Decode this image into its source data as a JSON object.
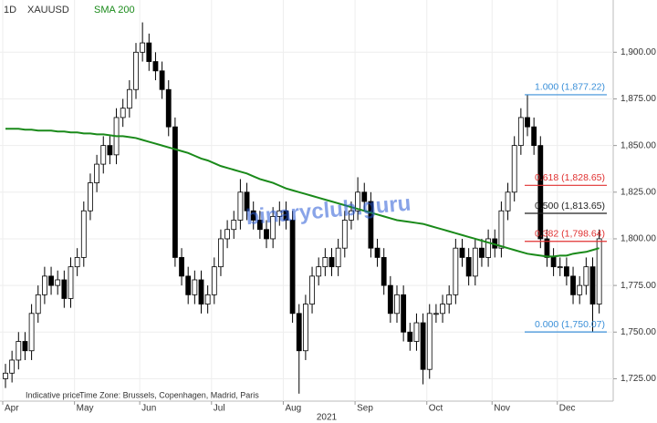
{
  "chart_data": {
    "type": "candlestick",
    "interval": "1D",
    "year_label": "2021",
    "footnote": "Indicative price",
    "timezone": "Time Zone: Brussels, Copenhagen, Madrid, Paris",
    "watermark": "binaryclub.guru",
    "categories": [
      null,
      null,
      null,
      null,
      null,
      null,
      null,
      null,
      null,
      null,
      null,
      null,
      null,
      null,
      null,
      null,
      null,
      null,
      null,
      null,
      null,
      null,
      null,
      null,
      null,
      null,
      null,
      null,
      null,
      null,
      null,
      null,
      null,
      null,
      null,
      null,
      null,
      null,
      null,
      null,
      null,
      null,
      null,
      null,
      null,
      null,
      null,
      null,
      null,
      null,
      null,
      null,
      null,
      null,
      null,
      null,
      null,
      null,
      null,
      null,
      null,
      null,
      null,
      null,
      null,
      null,
      null,
      null,
      null,
      null,
      null,
      null,
      null,
      null,
      null,
      null,
      null,
      null,
      null,
      null,
      null,
      null,
      null,
      null,
      null,
      null,
      null,
      null,
      null,
      null,
      null,
      null
    ],
    "xticks": [
      {
        "value": 0,
        "label": "Apr"
      },
      {
        "value": 11,
        "label": "May"
      },
      {
        "value": 21,
        "label": "Jun"
      },
      {
        "value": 32,
        "label": "Jul"
      },
      {
        "value": 43,
        "label": "Aug"
      },
      {
        "value": 54,
        "label": "Sep"
      },
      {
        "value": 65,
        "label": "Oct"
      },
      {
        "value": 75,
        "label": "Nov"
      },
      {
        "value": 85,
        "label": "Dec"
      }
    ],
    "ylim": [
      1713,
      1928
    ],
    "yticks": [
      {
        "value": 1725,
        "label": "1,725.00"
      },
      {
        "value": 1750,
        "label": "1,750.00"
      },
      {
        "value": 1775,
        "label": "1,775.00"
      },
      {
        "value": 1800,
        "label": "1,800.00"
      },
      {
        "value": 1825,
        "label": "1,825.00"
      },
      {
        "value": 1850,
        "label": "1,850.00"
      },
      {
        "value": 1875,
        "label": "1,875.00"
      },
      {
        "value": 1900,
        "label": "1,900.00"
      }
    ],
    "grid": true,
    "series": [
      {
        "name": "XAUUSD",
        "color": "#000000",
        "up_color": "#ffffff",
        "down_color": "#000000",
        "open": [
          1725,
          1728,
          1735,
          1745,
          1740,
          1760,
          1770,
          1780,
          1775,
          1778,
          1768,
          1785,
          1790,
          1815,
          1830,
          1840,
          1850,
          1845,
          1865,
          1870,
          1880,
          1900,
          1905,
          1895,
          1890,
          1880,
          1860,
          1790,
          1780,
          1770,
          1778,
          1765,
          1770,
          1785,
          1800,
          1805,
          1810,
          1825,
          1815,
          1810,
          1805,
          1800,
          1812,
          1815,
          1810,
          1760,
          1740,
          1765,
          1780,
          1785,
          1790,
          1785,
          1795,
          1810,
          1815,
          1825,
          1820,
          1795,
          1790,
          1775,
          1760,
          1770,
          1750,
          1745,
          1755,
          1730,
          1760,
          1760,
          1765,
          1770,
          1795,
          1790,
          1780,
          1795,
          1790,
          1800,
          1795,
          1815,
          1825,
          1850,
          1865,
          1860,
          1850,
          1800,
          1790,
          1785,
          1785,
          1780,
          1770,
          1775,
          1785,
          1765
        ],
        "high": [
          1733,
          1740,
          1750,
          1750,
          1765,
          1775,
          1785,
          1785,
          1783,
          1783,
          1790,
          1795,
          1820,
          1835,
          1845,
          1855,
          1855,
          1870,
          1875,
          1885,
          1905,
          1916,
          1910,
          1900,
          1895,
          1885,
          1865,
          1795,
          1785,
          1783,
          1783,
          1775,
          1790,
          1805,
          1810,
          1815,
          1832,
          1830,
          1820,
          1815,
          1810,
          1817,
          1820,
          1820,
          1815,
          1765,
          1770,
          1785,
          1790,
          1795,
          1795,
          1800,
          1815,
          1820,
          1833,
          1830,
          1825,
          1800,
          1795,
          1780,
          1775,
          1775,
          1755,
          1760,
          1760,
          1765,
          1765,
          1770,
          1775,
          1800,
          1800,
          1795,
          1800,
          1800,
          1805,
          1805,
          1820,
          1830,
          1855,
          1870,
          1877,
          1865,
          1855,
          1805,
          1795,
          1790,
          1790,
          1785,
          1780,
          1790,
          1790,
          1805
        ],
        "low": [
          1720,
          1723,
          1730,
          1735,
          1735,
          1755,
          1765,
          1770,
          1770,
          1763,
          1763,
          1780,
          1785,
          1810,
          1825,
          1835,
          1840,
          1840,
          1860,
          1865,
          1875,
          1895,
          1890,
          1885,
          1875,
          1855,
          1785,
          1775,
          1765,
          1765,
          1760,
          1760,
          1765,
          1780,
          1795,
          1800,
          1805,
          1810,
          1805,
          1800,
          1795,
          1795,
          1807,
          1805,
          1755,
          1717,
          1735,
          1760,
          1775,
          1780,
          1780,
          1780,
          1790,
          1805,
          1810,
          1815,
          1790,
          1785,
          1770,
          1755,
          1755,
          1745,
          1740,
          1740,
          1722,
          1725,
          1755,
          1755,
          1760,
          1765,
          1785,
          1775,
          1775,
          1785,
          1785,
          1790,
          1790,
          1810,
          1820,
          1845,
          1855,
          1845,
          1795,
          1785,
          1780,
          1780,
          1775,
          1765,
          1765,
          1770,
          1750,
          1760
        ],
        "close": [
          1728,
          1735,
          1745,
          1740,
          1760,
          1770,
          1780,
          1775,
          1778,
          1768,
          1785,
          1790,
          1815,
          1830,
          1840,
          1850,
          1845,
          1865,
          1870,
          1880,
          1900,
          1905,
          1895,
          1890,
          1880,
          1860,
          1790,
          1780,
          1770,
          1778,
          1765,
          1770,
          1785,
          1800,
          1805,
          1810,
          1825,
          1815,
          1810,
          1805,
          1800,
          1812,
          1815,
          1810,
          1760,
          1740,
          1765,
          1780,
          1785,
          1790,
          1785,
          1795,
          1810,
          1815,
          1825,
          1820,
          1795,
          1790,
          1775,
          1760,
          1770,
          1750,
          1745,
          1755,
          1730,
          1760,
          1760,
          1765,
          1770,
          1795,
          1790,
          1780,
          1795,
          1790,
          1800,
          1795,
          1815,
          1825,
          1850,
          1865,
          1860,
          1850,
          1800,
          1790,
          1785,
          1785,
          1780,
          1770,
          1775,
          1785,
          1765,
          1800
        ]
      },
      {
        "name": "SMA 200",
        "color": "#1a8a1a",
        "values": [
          1859,
          1859,
          1859,
          1858.5,
          1858.5,
          1858,
          1858,
          1858,
          1857.5,
          1857.5,
          1857,
          1857,
          1856.5,
          1856.5,
          1856,
          1856,
          1855.5,
          1855,
          1855,
          1854.5,
          1854,
          1853,
          1852,
          1851,
          1850,
          1849,
          1848,
          1847,
          1846,
          1844.5,
          1843,
          1842,
          1840.5,
          1839,
          1838,
          1837,
          1836,
          1835,
          1833.5,
          1832,
          1831,
          1830,
          1828.5,
          1827,
          1826,
          1825,
          1824,
          1823,
          1822,
          1821,
          1820,
          1819,
          1818,
          1817,
          1816,
          1815,
          1814,
          1813,
          1812,
          1811,
          1810,
          1809.5,
          1809,
          1808.5,
          1808,
          1807,
          1806,
          1805,
          1804,
          1803,
          1802,
          1801,
          1800,
          1799,
          1798,
          1797,
          1796,
          1795,
          1794,
          1793,
          1792,
          1791.5,
          1791,
          1790.5,
          1790.5,
          1791,
          1791,
          1792,
          1792.5,
          1793,
          1794,
          1795
        ]
      }
    ],
    "fib_levels": [
      {
        "value": 1877.22,
        "label": "1.000 (1,877.22)",
        "color": "#3a8fd8"
      },
      {
        "value": 1828.65,
        "label": "0.618 (1,828.65)",
        "color": "#e03030"
      },
      {
        "value": 1813.65,
        "label": "0.500 (1,813.65)",
        "color": "#222222"
      },
      {
        "value": 1798.64,
        "label": "0.382 (1,798.64)",
        "color": "#e03030"
      },
      {
        "value": 1750.07,
        "label": "0.000 (1,750.07)",
        "color": "#3a8fd8"
      }
    ]
  }
}
